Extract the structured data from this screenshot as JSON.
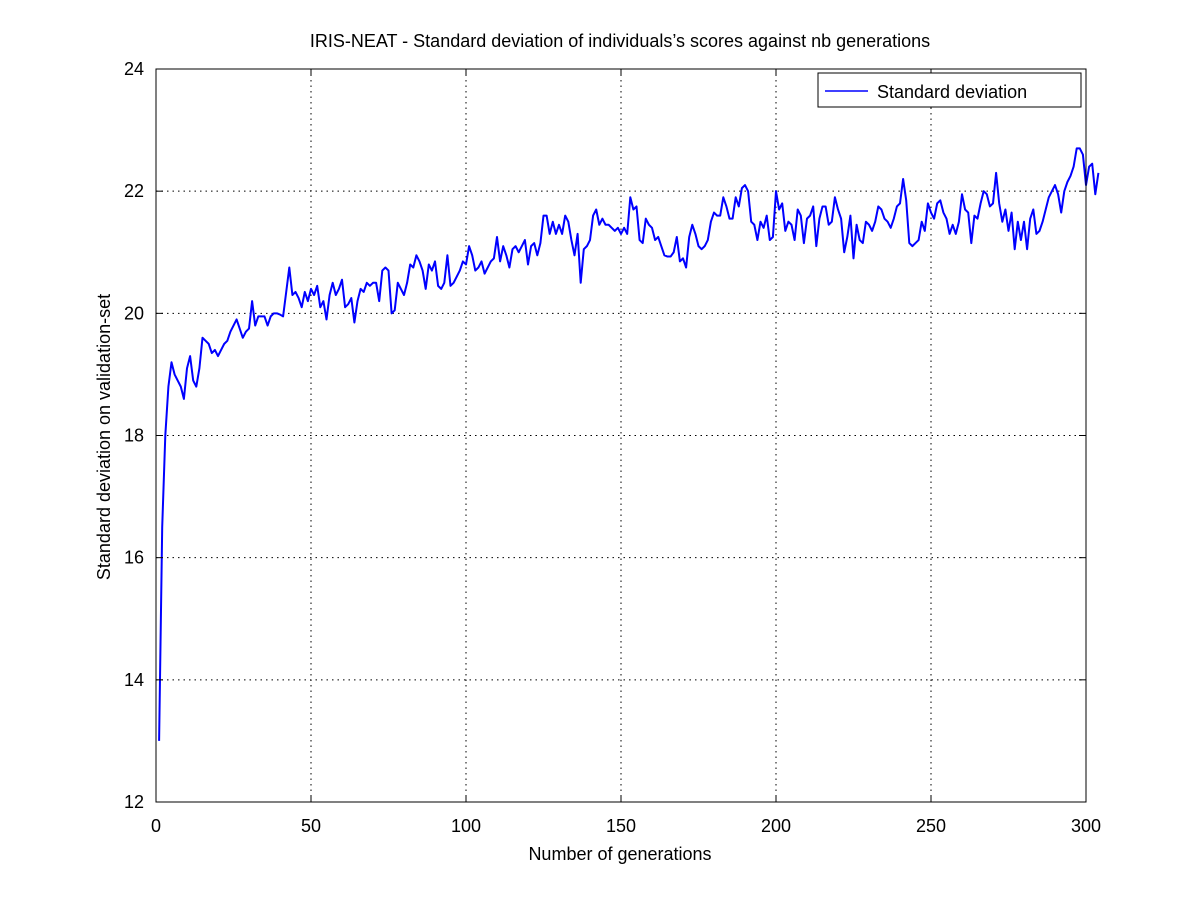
{
  "chart_data": {
    "type": "line",
    "title": "IRIS-NEAT - Standard deviation of individuals’s scores against nb generations",
    "xlabel": "Number of generations",
    "ylabel": "Standard deviation on validation-set",
    "xlim": [
      0,
      300
    ],
    "ylim": [
      12,
      24
    ],
    "xticks": [
      0,
      50,
      100,
      150,
      200,
      250,
      300
    ],
    "yticks": [
      12,
      14,
      16,
      18,
      20,
      22,
      24
    ],
    "grid": true,
    "grid_style": "dotted",
    "legend_position": "top-right",
    "series": [
      {
        "name": "Standard deviation",
        "color": "#0000ff",
        "y": [
          13.0,
          16.5,
          18.0,
          18.8,
          19.2,
          19.0,
          18.9,
          18.8,
          18.6,
          19.1,
          19.3,
          18.9,
          18.8,
          19.1,
          19.6,
          19.55,
          19.5,
          19.35,
          19.4,
          19.3,
          19.4,
          19.5,
          19.55,
          19.7,
          19.8,
          19.9,
          19.75,
          19.6,
          19.7,
          19.75,
          20.2,
          19.8,
          19.95,
          19.95,
          19.95,
          19.8,
          19.95,
          20.0,
          20.0,
          19.98,
          19.95,
          20.35,
          20.75,
          20.3,
          20.35,
          20.25,
          20.1,
          20.35,
          20.2,
          20.4,
          20.3,
          20.45,
          20.1,
          20.2,
          19.9,
          20.3,
          20.5,
          20.3,
          20.4,
          20.55,
          20.1,
          20.15,
          20.25,
          19.85,
          20.2,
          20.4,
          20.35,
          20.5,
          20.45,
          20.5,
          20.5,
          20.2,
          20.7,
          20.75,
          20.7,
          20.0,
          20.05,
          20.5,
          20.4,
          20.3,
          20.5,
          20.8,
          20.75,
          20.95,
          20.85,
          20.7,
          20.4,
          20.8,
          20.7,
          20.85,
          20.45,
          20.4,
          20.5,
          20.95,
          20.45,
          20.5,
          20.6,
          20.7,
          20.85,
          20.8,
          21.1,
          20.95,
          20.7,
          20.75,
          20.85,
          20.65,
          20.75,
          20.85,
          20.9,
          21.25,
          20.85,
          21.1,
          20.95,
          20.75,
          21.05,
          21.1,
          21.0,
          21.1,
          21.2,
          20.8,
          21.1,
          21.15,
          20.95,
          21.15,
          21.6,
          21.6,
          21.3,
          21.5,
          21.3,
          21.45,
          21.3,
          21.6,
          21.5,
          21.2,
          20.95,
          21.3,
          20.5,
          21.05,
          21.1,
          21.2,
          21.6,
          21.7,
          21.45,
          21.55,
          21.45,
          21.45,
          21.4,
          21.35,
          21.4,
          21.3,
          21.4,
          21.3,
          21.9,
          21.7,
          21.75,
          21.2,
          21.15,
          21.55,
          21.45,
          21.4,
          21.2,
          21.25,
          21.1,
          20.95,
          20.93,
          20.93,
          21.0,
          21.25,
          20.85,
          20.9,
          20.75,
          21.25,
          21.45,
          21.3,
          21.1,
          21.05,
          21.1,
          21.2,
          21.5,
          21.65,
          21.6,
          21.6,
          21.9,
          21.75,
          21.55,
          21.55,
          21.9,
          21.75,
          22.05,
          22.1,
          22.0,
          21.5,
          21.45,
          21.2,
          21.5,
          21.4,
          21.6,
          21.2,
          21.25,
          22.0,
          21.7,
          21.8,
          21.35,
          21.5,
          21.45,
          21.2,
          21.7,
          21.6,
          21.15,
          21.55,
          21.6,
          21.75,
          21.1,
          21.55,
          21.75,
          21.75,
          21.45,
          21.5,
          21.9,
          21.7,
          21.55,
          21.0,
          21.25,
          21.6,
          20.9,
          21.45,
          21.2,
          21.15,
          21.5,
          21.45,
          21.35,
          21.5,
          21.75,
          21.7,
          21.55,
          21.5,
          21.4,
          21.55,
          21.75,
          21.8,
          22.2,
          21.85,
          21.15,
          21.1,
          21.15,
          21.2,
          21.5,
          21.35,
          21.8,
          21.65,
          21.55,
          21.8,
          21.85,
          21.65,
          21.55,
          21.3,
          21.45,
          21.3,
          21.5,
          21.95,
          21.7,
          21.65,
          21.15,
          21.6,
          21.55,
          21.8,
          22.0,
          21.95,
          21.75,
          21.8,
          22.3,
          21.8,
          21.5,
          21.7,
          21.35,
          21.65,
          21.05,
          21.5,
          21.2,
          21.5,
          21.05,
          21.55,
          21.7,
          21.3,
          21.35,
          21.5,
          21.7,
          21.9,
          22.0,
          22.1,
          21.95,
          21.65,
          22.0,
          22.15,
          22.25,
          22.4,
          22.7,
          22.7,
          22.6,
          22.1,
          22.4,
          22.45,
          21.95,
          22.3
        ]
      }
    ]
  }
}
